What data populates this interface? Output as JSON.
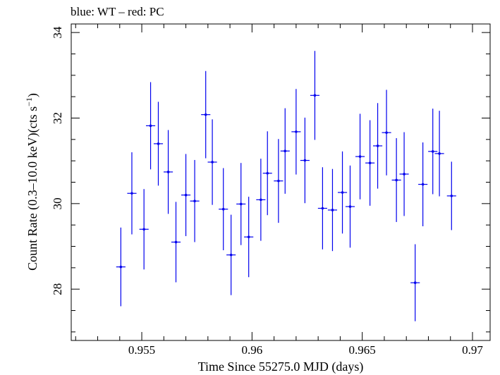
{
  "chart_data": {
    "type": "scatter",
    "title": "blue: WT – red: PC",
    "xlabel": "Time Since 55275.0 MJD (days)",
    "ylabel_main": "Count Rate (0.3–10.0 keV)(cts s",
    "ylabel_sup": "−1",
    "ylabel_end": ")",
    "xlim": [
      0.9518,
      0.9708
    ],
    "ylim": [
      26.8,
      34.2
    ],
    "xticks": [
      0.955,
      0.96,
      0.965,
      0.97
    ],
    "xtick_labels": [
      "0.955",
      "0.96",
      "0.965",
      "0.97"
    ],
    "yticks": [
      28,
      30,
      32,
      34
    ],
    "ytick_labels": [
      "28",
      "30",
      "32",
      "34"
    ],
    "series_color": "#0000ee",
    "series": [
      {
        "x_halfwidth": 0.00021,
        "points": [
          {
            "x": 0.95405,
            "y": 28.52,
            "err": 0.92
          },
          {
            "x": 0.95455,
            "y": 30.24,
            "err": 0.96
          },
          {
            "x": 0.9551,
            "y": 29.4,
            "err": 0.94
          },
          {
            "x": 0.9554,
            "y": 31.82,
            "err": 1.02
          },
          {
            "x": 0.95575,
            "y": 31.4,
            "err": 0.98
          },
          {
            "x": 0.9562,
            "y": 30.74,
            "err": 0.98
          },
          {
            "x": 0.95655,
            "y": 29.1,
            "err": 0.94
          },
          {
            "x": 0.957,
            "y": 30.2,
            "err": 0.96
          },
          {
            "x": 0.9574,
            "y": 30.06,
            "err": 0.96
          },
          {
            "x": 0.9579,
            "y": 32.08,
            "err": 1.02
          },
          {
            "x": 0.9582,
            "y": 30.97,
            "err": 1.0
          },
          {
            "x": 0.9587,
            "y": 29.87,
            "err": 0.96
          },
          {
            "x": 0.95905,
            "y": 28.8,
            "err": 0.94
          },
          {
            "x": 0.9595,
            "y": 29.99,
            "err": 0.96
          },
          {
            "x": 0.95985,
            "y": 29.22,
            "err": 0.94
          },
          {
            "x": 0.9604,
            "y": 30.09,
            "err": 0.96
          },
          {
            "x": 0.9607,
            "y": 30.71,
            "err": 0.98
          },
          {
            "x": 0.9612,
            "y": 30.53,
            "err": 0.98
          },
          {
            "x": 0.9615,
            "y": 31.23,
            "err": 1.0
          },
          {
            "x": 0.962,
            "y": 31.68,
            "err": 1.0
          },
          {
            "x": 0.9624,
            "y": 31.01,
            "err": 1.0
          },
          {
            "x": 0.96285,
            "y": 32.53,
            "err": 1.04
          },
          {
            "x": 0.9632,
            "y": 29.89,
            "err": 0.96
          },
          {
            "x": 0.96365,
            "y": 29.85,
            "err": 0.96
          },
          {
            "x": 0.9641,
            "y": 30.26,
            "err": 0.96
          },
          {
            "x": 0.96445,
            "y": 29.93,
            "err": 0.96
          },
          {
            "x": 0.9649,
            "y": 31.1,
            "err": 1.0
          },
          {
            "x": 0.96535,
            "y": 30.95,
            "err": 1.0
          },
          {
            "x": 0.9657,
            "y": 31.35,
            "err": 1.0
          },
          {
            "x": 0.9661,
            "y": 31.66,
            "err": 1.0
          },
          {
            "x": 0.96655,
            "y": 30.55,
            "err": 0.98
          },
          {
            "x": 0.9669,
            "y": 30.69,
            "err": 0.98
          },
          {
            "x": 0.9674,
            "y": 28.15,
            "err": 0.9
          },
          {
            "x": 0.96775,
            "y": 30.45,
            "err": 0.98
          },
          {
            "x": 0.9682,
            "y": 31.22,
            "err": 1.0
          },
          {
            "x": 0.9685,
            "y": 31.17,
            "err": 1.0
          },
          {
            "x": 0.96905,
            "y": 30.18,
            "err": 0.8
          }
        ]
      }
    ]
  }
}
